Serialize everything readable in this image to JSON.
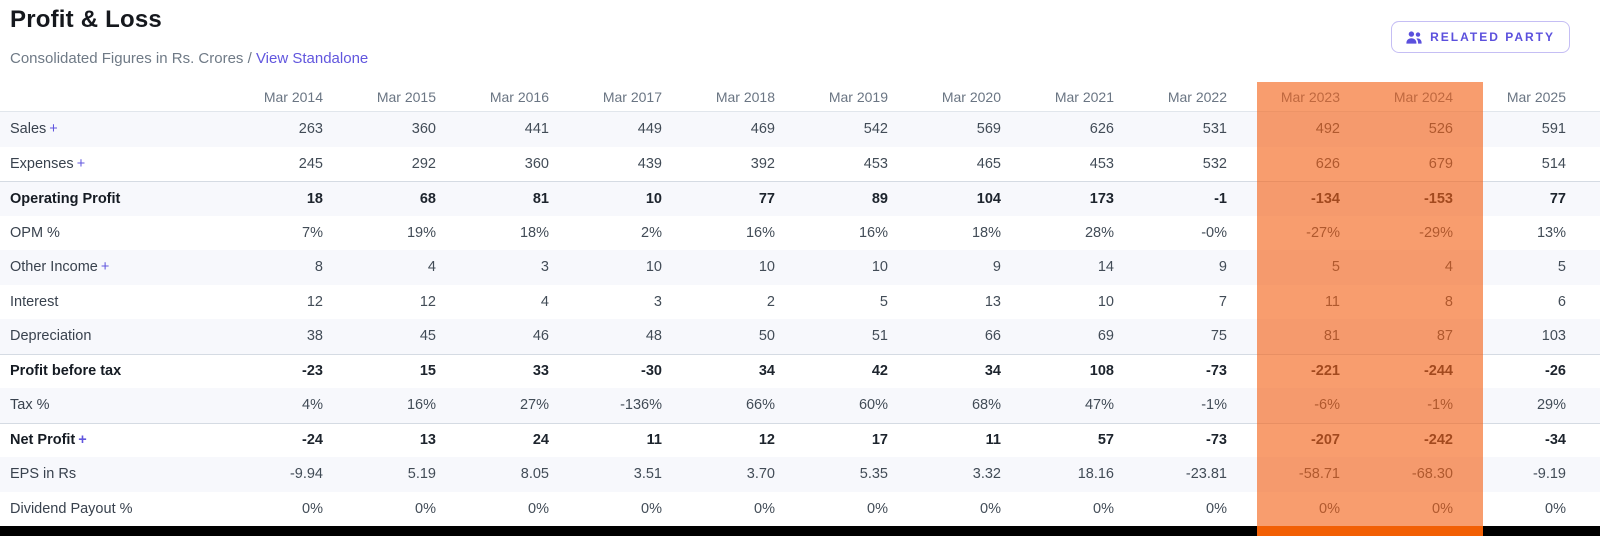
{
  "header": {
    "title": "Profit & Loss",
    "subtitle": "Consolidated Figures in Rs. Crores /",
    "view_link": "View Standalone",
    "related_party": "RELATED PARTY"
  },
  "colors": {
    "accent_purple": "#5b50dd",
    "link_purple": "#6156de",
    "highlight_orange": "#f36115",
    "range_bar_orange": "#f25f04",
    "row_stripe": "#f7f8fc",
    "bottom_bar": "#000000"
  },
  "table": {
    "expand_symbol": "+",
    "columns": [
      "Mar 2014",
      "Mar 2015",
      "Mar 2016",
      "Mar 2017",
      "Mar 2018",
      "Mar 2019",
      "Mar 2020",
      "Mar 2021",
      "Mar 2022",
      "Mar 2023",
      "Mar 2024",
      "Mar 2025"
    ],
    "highlighted_columns": [
      "Mar 2023",
      "Mar 2024"
    ],
    "rows": [
      {
        "label": "Sales",
        "expandable": true,
        "bold": false,
        "separator": false,
        "values": [
          "263",
          "360",
          "441",
          "449",
          "469",
          "542",
          "569",
          "626",
          "531",
          "492",
          "526",
          "591"
        ]
      },
      {
        "label": "Expenses",
        "expandable": true,
        "bold": false,
        "separator": false,
        "values": [
          "245",
          "292",
          "360",
          "439",
          "392",
          "453",
          "465",
          "453",
          "532",
          "626",
          "679",
          "514"
        ]
      },
      {
        "label": "Operating Profit",
        "expandable": false,
        "bold": true,
        "separator": true,
        "values": [
          "18",
          "68",
          "81",
          "10",
          "77",
          "89",
          "104",
          "173",
          "-1",
          "-134",
          "-153",
          "77"
        ]
      },
      {
        "label": "OPM %",
        "expandable": false,
        "bold": false,
        "separator": false,
        "values": [
          "7%",
          "19%",
          "18%",
          "2%",
          "16%",
          "16%",
          "18%",
          "28%",
          "-0%",
          "-27%",
          "-29%",
          "13%"
        ]
      },
      {
        "label": "Other Income",
        "expandable": true,
        "bold": false,
        "separator": false,
        "values": [
          "8",
          "4",
          "3",
          "10",
          "10",
          "10",
          "9",
          "14",
          "9",
          "5",
          "4",
          "5"
        ]
      },
      {
        "label": "Interest",
        "expandable": false,
        "bold": false,
        "separator": false,
        "values": [
          "12",
          "12",
          "4",
          "3",
          "2",
          "5",
          "13",
          "10",
          "7",
          "11",
          "8",
          "6"
        ]
      },
      {
        "label": "Depreciation",
        "expandable": false,
        "bold": false,
        "separator": false,
        "values": [
          "38",
          "45",
          "46",
          "48",
          "50",
          "51",
          "66",
          "69",
          "75",
          "81",
          "87",
          "103"
        ]
      },
      {
        "label": "Profit before tax",
        "expandable": false,
        "bold": true,
        "separator": true,
        "values": [
          "-23",
          "15",
          "33",
          "-30",
          "34",
          "42",
          "34",
          "108",
          "-73",
          "-221",
          "-244",
          "-26"
        ]
      },
      {
        "label": "Tax %",
        "expandable": false,
        "bold": false,
        "separator": false,
        "values": [
          "4%",
          "16%",
          "27%",
          "-136%",
          "66%",
          "60%",
          "68%",
          "47%",
          "-1%",
          "-6%",
          "-1%",
          "29%"
        ]
      },
      {
        "label": "Net Profit",
        "expandable": true,
        "bold": true,
        "separator": true,
        "values": [
          "-24",
          "13",
          "24",
          "11",
          "12",
          "17",
          "11",
          "57",
          "-73",
          "-207",
          "-242",
          "-34"
        ]
      },
      {
        "label": "EPS in Rs",
        "expandable": false,
        "bold": false,
        "separator": false,
        "values": [
          "-9.94",
          "5.19",
          "8.05",
          "3.51",
          "3.70",
          "5.35",
          "3.32",
          "18.16",
          "-23.81",
          "-58.71",
          "-68.30",
          "-9.19"
        ]
      },
      {
        "label": "Dividend Payout %",
        "expandable": false,
        "bold": false,
        "separator": false,
        "values": [
          "0%",
          "0%",
          "0%",
          "0%",
          "0%",
          "0%",
          "0%",
          "0%",
          "0%",
          "0%",
          "0%",
          "0%"
        ]
      }
    ]
  }
}
